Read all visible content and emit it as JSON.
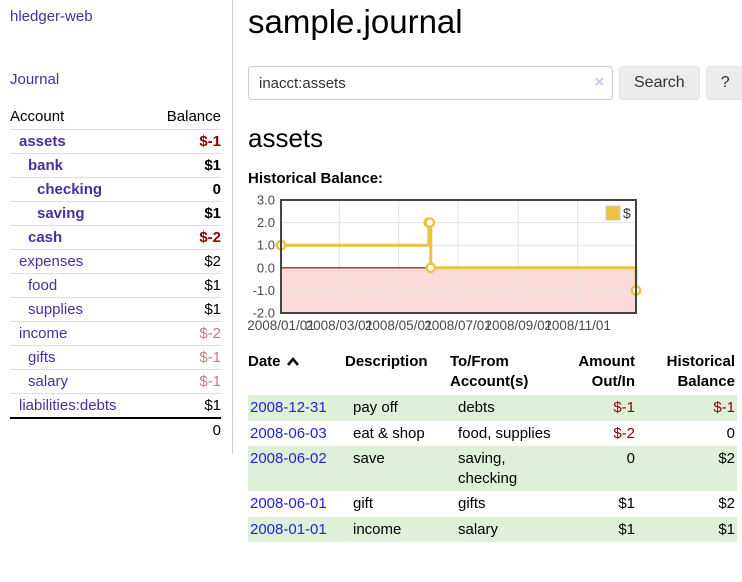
{
  "sidebar": {
    "app_title": "hledger-web",
    "journal_link": "Journal",
    "table": {
      "account_header": "Account",
      "balance_header": "Balance",
      "total": "0"
    },
    "accounts": [
      {
        "name": "assets",
        "indent": 1,
        "bold": true,
        "balance": "$-1",
        "balance_style": "neg b"
      },
      {
        "name": "bank",
        "indent": 2,
        "bold": true,
        "balance": "$1",
        "balance_style": "b"
      },
      {
        "name": "checking",
        "indent": 3,
        "bold": true,
        "balance": "0",
        "balance_style": "b"
      },
      {
        "name": "saving",
        "indent": 3,
        "bold": true,
        "balance": "$1",
        "balance_style": "b"
      },
      {
        "name": "cash",
        "indent": 2,
        "bold": true,
        "balance": "$-2",
        "balance_style": "neg b"
      },
      {
        "name": "expenses",
        "indent": 1,
        "bold": false,
        "balance": "$2",
        "balance_style": ""
      },
      {
        "name": "food",
        "indent": 2,
        "bold": false,
        "balance": "$1",
        "balance_style": ""
      },
      {
        "name": "supplies",
        "indent": 2,
        "bold": false,
        "balance": "$1",
        "balance_style": ""
      },
      {
        "name": "income",
        "indent": 1,
        "bold": false,
        "balance": "$-2",
        "balance_style": "negmuted"
      },
      {
        "name": "gifts",
        "indent": 2,
        "bold": false,
        "balance": "$-1",
        "balance_style": "negmuted"
      },
      {
        "name": "salary",
        "indent": 2,
        "bold": false,
        "balance": "$-1",
        "balance_style": "negmuted"
      },
      {
        "name": "liabilities:debts",
        "indent": 1,
        "bold": false,
        "balance": "$1",
        "balance_style": ""
      }
    ]
  },
  "main": {
    "title": "sample.journal",
    "search": {
      "value": "inacct:assets",
      "button_label": "Search",
      "help_label": "?",
      "clear_icon": "×"
    },
    "account_heading": "assets",
    "chart_label": "Historical Balance:"
  },
  "register": {
    "headers": {
      "date": "Date",
      "description": "Description",
      "tofrom": "To/From Account(s)",
      "amount": "Amount Out/In",
      "balance": "Historical Balance"
    },
    "rows": [
      {
        "date": "2008-12-31",
        "description": "pay off",
        "accounts_lines": [
          "debts"
        ],
        "amount": "$-1",
        "amount_negative": true,
        "balance": "$-1",
        "balance_negative": true
      },
      {
        "date": "2008-06-03",
        "description": "eat & shop",
        "accounts_lines": [
          "food, supplies"
        ],
        "amount": "$-2",
        "amount_negative": true,
        "balance": "0",
        "balance_negative": false
      },
      {
        "date": "2008-06-02",
        "description": "save",
        "accounts_lines": [
          "saving,",
          "checking"
        ],
        "amount": "0",
        "amount_negative": false,
        "balance": "$2",
        "balance_negative": false
      },
      {
        "date": "2008-06-01",
        "description": "gift",
        "accounts_lines": [
          "gifts"
        ],
        "amount": "$1",
        "amount_negative": false,
        "balance": "$2",
        "balance_negative": false
      },
      {
        "date": "2008-01-01",
        "description": "income",
        "accounts_lines": [
          "salary"
        ],
        "amount": "$1",
        "amount_negative": false,
        "balance": "$1",
        "balance_negative": false
      }
    ]
  },
  "chart_data": {
    "type": "line",
    "title": "Historical Balance:",
    "step": true,
    "series": [
      {
        "name": "$",
        "color": "#edc240",
        "points": [
          {
            "date": "2008-01-01",
            "day": 0,
            "value": 1
          },
          {
            "date": "2008-06-01",
            "day": 152,
            "value": 2
          },
          {
            "date": "2008-06-02",
            "day": 153,
            "value": 2
          },
          {
            "date": "2008-06-03",
            "day": 154,
            "value": 0
          },
          {
            "date": "2008-12-31",
            "day": 365,
            "value": -1
          }
        ]
      }
    ],
    "xlim_days": [
      0,
      365
    ],
    "ylim": [
      -2,
      3
    ],
    "yticks": [
      3,
      2,
      1,
      0,
      -1,
      -2
    ],
    "ytick_labels": [
      "3.0",
      "2.0",
      "1.0",
      "0.0",
      "-1.0",
      "-2.0"
    ],
    "xticks": [
      {
        "day": 0,
        "label": "2008/01/01"
      },
      {
        "day": 60,
        "label": "2008/03/01"
      },
      {
        "day": 121,
        "label": "2008/05/01"
      },
      {
        "day": 182,
        "label": "2008/07/01"
      },
      {
        "day": 244,
        "label": "2008/09/01"
      },
      {
        "day": 305,
        "label": "2008/11/01"
      }
    ],
    "legend": {
      "label": "$",
      "position": "top-right"
    },
    "grid": true,
    "negative_fill": "#fbdada",
    "zero_line_color": "#8b0000",
    "border_color": "#444444",
    "grid_color": "#e3e3e3",
    "axis_text_color": "#4a4a4a"
  },
  "colors": {
    "link_purple": "#4b2e9e",
    "negative_strong": "#8b0000",
    "negative_muted": "#bd7e7e",
    "date_link_blue": "#2222dd",
    "row_stripe_green": "#dff0d8",
    "series_gold": "#edc240"
  }
}
